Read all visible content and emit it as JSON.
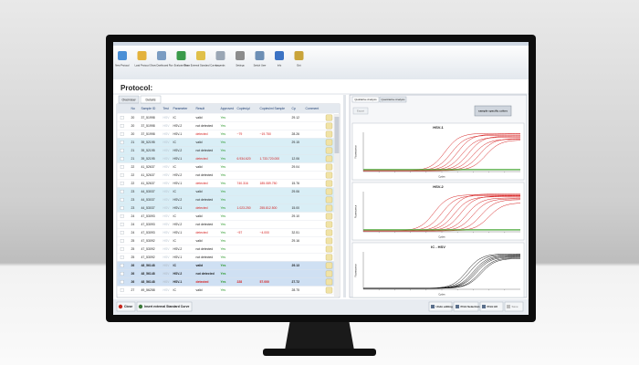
{
  "toolbar": [
    "New Protocol",
    "Load Protocol",
    "Show Dashboard Run",
    "Evaluate Run",
    "Show External Standard Curves",
    "Legends",
    "Settings",
    "Switch User",
    "Info",
    "Exit"
  ],
  "protocol_title": "Protocol:",
  "tabs": [
    "Overview",
    "Details"
  ],
  "table": {
    "columns": [
      "No",
      "Sample ID",
      "Test",
      "Parameter",
      "Result",
      "Approved",
      "Copies/µl",
      "Copies/ml Sample",
      "Cp",
      "Comment"
    ],
    "rows": [
      {
        "style": "plain",
        "cells": [
          "20",
          "37_51998",
          "HSV",
          "IC",
          "valid",
          "Yes",
          null,
          null,
          "29.12"
        ]
      },
      {
        "style": "plain",
        "cells": [
          "20",
          "37_51998",
          "HSV",
          "HSV-2",
          "not detected",
          "Yes",
          null,
          null,
          null
        ]
      },
      {
        "style": "plain",
        "cells": [
          "20",
          "37_51998",
          "HSV",
          "HSV-1",
          "detected",
          "Yes",
          "~79",
          "~19.750",
          "28.26"
        ]
      },
      {
        "style": "blue",
        "cells": [
          "21",
          "39_52195",
          "HSV",
          "IC",
          "valid",
          "Yes",
          null,
          null,
          "29.15"
        ]
      },
      {
        "style": "blue",
        "cells": [
          "21",
          "39_52195",
          "HSV",
          "HSV-2",
          "not detected",
          "Yes",
          null,
          null,
          null
        ]
      },
      {
        "style": "blue",
        "cells": [
          "21",
          "39_52195",
          "HSV",
          "HSV-1",
          "detected",
          "Yes",
          "6.934.620",
          "1.733.720.000",
          "12.06"
        ]
      },
      {
        "style": "plain",
        "cells": [
          "22",
          "41_52637",
          "HSV",
          "IC",
          "valid",
          "Yes",
          null,
          null,
          "29.04"
        ]
      },
      {
        "style": "plain",
        "cells": [
          "22",
          "41_52637",
          "HSV",
          "HSV-2",
          "not detected",
          "Yes",
          null,
          null,
          null
        ]
      },
      {
        "style": "plain",
        "cells": [
          "22",
          "41_52637",
          "HSV",
          "HSV-1",
          "detected",
          "Yes",
          "740.316",
          "185.089.750",
          "15.76"
        ]
      },
      {
        "style": "blue",
        "cells": [
          "23",
          "44_53037",
          "HSV",
          "IC",
          "valid",
          "Yes",
          null,
          null,
          "29.06"
        ]
      },
      {
        "style": "blue",
        "cells": [
          "23",
          "44_53037",
          "HSV",
          "HSV-2",
          "not detected",
          "Yes",
          null,
          null,
          null
        ]
      },
      {
        "style": "blue",
        "cells": [
          "23",
          "44_53037",
          "HSV",
          "HSV-1",
          "detected",
          "Yes",
          "1.023.250",
          "255.812.500",
          "15.00"
        ]
      },
      {
        "style": "plain",
        "cells": [
          "24",
          "47_53093",
          "HSV",
          "IC",
          "valid",
          "Yes",
          null,
          null,
          "29.10"
        ]
      },
      {
        "style": "plain",
        "cells": [
          "24",
          "47_53093",
          "HSV",
          "HSV-2",
          "not detected",
          "Yes",
          null,
          null,
          null
        ]
      },
      {
        "style": "plain",
        "cells": [
          "24",
          "47_53093",
          "HSV",
          "HSV-1",
          "detected",
          "Yes",
          "~57",
          "~4.000",
          "32.51"
        ]
      },
      {
        "style": "plain",
        "cells": [
          "25",
          "47_53092",
          "HSV",
          "IC",
          "valid",
          "Yes",
          null,
          null,
          "29.16"
        ]
      },
      {
        "style": "plain",
        "cells": [
          "25",
          "47_53092",
          "HSV",
          "HSV-2",
          "not detected",
          "Yes",
          null,
          null,
          null
        ]
      },
      {
        "style": "plain",
        "cells": [
          "25",
          "47_53092",
          "HSV",
          "HSV-1",
          "not detected",
          "Yes",
          null,
          null,
          null
        ]
      },
      {
        "style": "selected",
        "cells": [
          "26",
          "48_56148",
          "HSV",
          "IC",
          "valid",
          "Yes",
          null,
          null,
          "29.13"
        ]
      },
      {
        "style": "selected",
        "cells": [
          "26",
          "48_56148",
          "HSV",
          "HSV-2",
          "not detected",
          "Yes",
          null,
          null,
          null
        ]
      },
      {
        "style": "selected",
        "cells": [
          "26",
          "48_56148",
          "HSV",
          "HSV-1",
          "detected",
          "Yes",
          "228",
          "57.000",
          "27.72"
        ]
      },
      {
        "style": "plain",
        "cells": [
          "27",
          "49_56258",
          "HSV",
          "IC",
          "valid",
          "Yes",
          null,
          null,
          "28.75"
        ]
      }
    ]
  },
  "analysis": {
    "tabs": [
      "Qualitative Analysis",
      "Quantitative Analysis"
    ],
    "export": "Export",
    "button": "sample specific colors",
    "charts": [
      {
        "title": "HSV-1",
        "y_label": "Fluorescence",
        "x_label": "Cycles"
      },
      {
        "title": "HSV-2",
        "y_label": "Fluorescence",
        "x_label": "Cycles"
      },
      {
        "title": "IC - HSV",
        "y_label": "Fluorescence",
        "x_label": "Cycles"
      }
    ]
  },
  "footer": {
    "left": [
      "Close",
      "Insert external Standard Curve"
    ],
    "right": [
      "Undo editing",
      "Print Selection",
      "Print All",
      "Save"
    ]
  }
}
